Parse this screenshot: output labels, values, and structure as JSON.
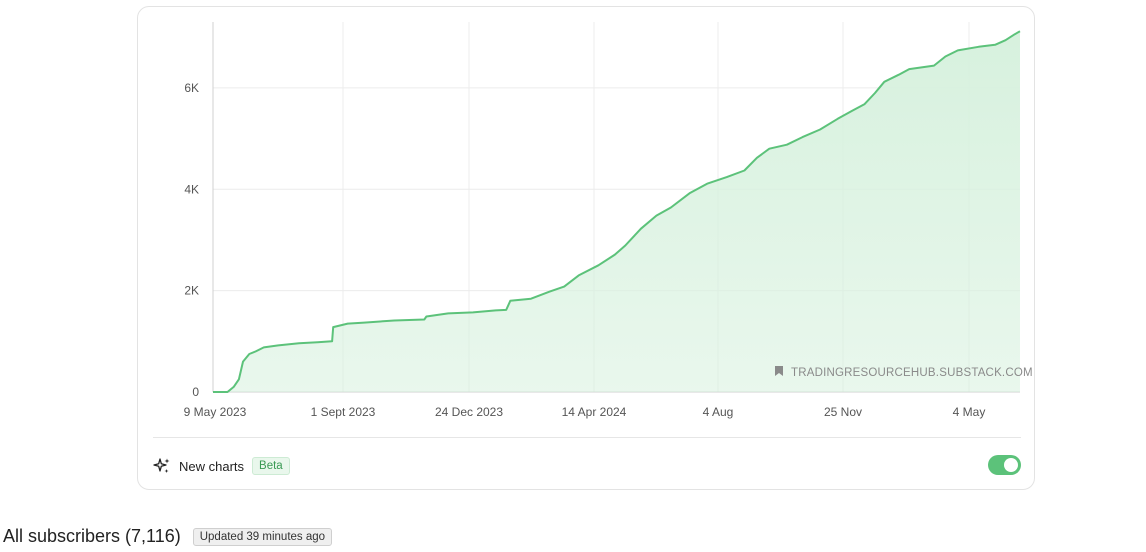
{
  "chart_data": {
    "type": "area",
    "x_tick_labels": [
      "9 May 2023",
      "1 Sept 2023",
      "24 Dec 2023",
      "14 Apr 2024",
      "4 Aug",
      "25 Nov",
      "4 May"
    ],
    "y_tick_labels": [
      "0",
      "2K",
      "4K",
      "6K"
    ],
    "y_ticks": [
      0,
      2000,
      4000,
      6000
    ],
    "ylim": [
      0,
      7300
    ],
    "xlim": [
      "2023-05-09",
      "2025-06-26"
    ],
    "grid": true,
    "color": "#5cc27a",
    "fill": "#d7f1de",
    "series": [
      {
        "x": [
          "2023-05-09",
          "2023-05-17",
          "2023-05-23",
          "2023-05-29",
          "2023-06-03",
          "2023-06-07",
          "2023-06-13",
          "2023-06-19",
          "2023-06-27",
          "2023-07-11",
          "2023-07-31",
          "2023-08-18",
          "2023-09-01",
          "2023-09-02",
          "2023-09-16",
          "2023-10-02",
          "2023-10-31",
          "2023-11-29",
          "2023-12-01",
          "2023-12-22",
          "2024-01-15",
          "2024-02-06",
          "2024-02-16",
          "2024-02-20",
          "2024-03-11",
          "2024-03-29",
          "2024-04-12",
          "2024-04-26",
          "2024-05-15",
          "2024-05-31",
          "2024-06-10",
          "2024-06-25",
          "2024-07-10",
          "2024-07-24",
          "2024-08-11",
          "2024-08-28",
          "2024-09-16",
          "2024-10-03",
          "2024-10-15",
          "2024-10-27",
          "2024-11-13",
          "2024-11-28",
          "2024-12-15",
          "2025-01-01",
          "2025-01-15",
          "2025-01-27",
          "2025-02-06",
          "2025-02-15",
          "2025-03-01",
          "2025-03-11",
          "2025-04-04",
          "2025-04-15",
          "2025-04-27",
          "2025-05-17",
          "2025-06-02",
          "2025-06-12",
          "2025-06-21",
          "2025-06-26"
        ],
        "y": [
          0,
          0,
          0,
          100,
          250,
          600,
          750,
          800,
          880,
          920,
          960,
          980,
          1000,
          1280,
          1350,
          1370,
          1410,
          1430,
          1490,
          1550,
          1570,
          1610,
          1620,
          1800,
          1840,
          1980,
          2080,
          2300,
          2500,
          2710,
          2890,
          3220,
          3480,
          3640,
          3920,
          4110,
          4240,
          4370,
          4620,
          4800,
          4880,
          5030,
          5180,
          5390,
          5550,
          5680,
          5900,
          6120,
          6260,
          6370,
          6440,
          6620,
          6740,
          6810,
          6850,
          6940,
          7060,
          7116
        ]
      }
    ]
  },
  "watermark": "TRADINGRESOURCEHUB.SUBSTACK.COM",
  "footer": {
    "new_charts_label": "New charts",
    "beta_label": "Beta",
    "toggle_on": true
  },
  "summary": {
    "title": "All subscribers (7,116)",
    "updated": "Updated 39 minutes ago"
  }
}
